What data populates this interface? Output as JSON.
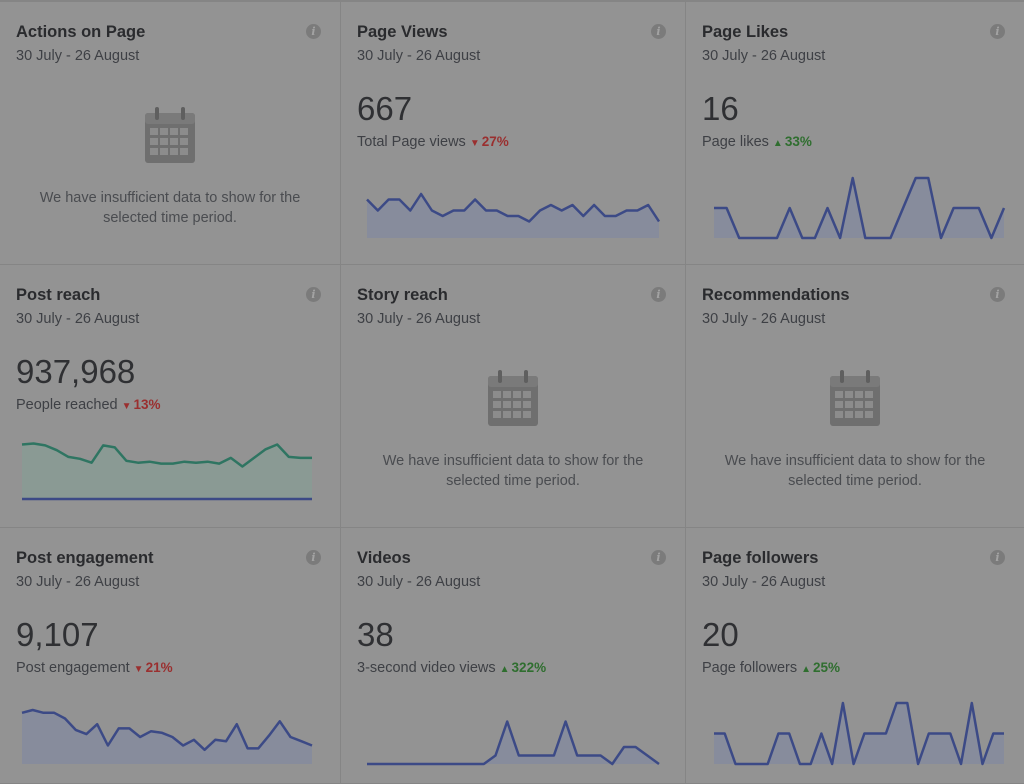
{
  "cards": [
    {
      "title": "Actions on Page",
      "date": "30 July - 26 August",
      "empty": true,
      "message_line1": "We have insufficient data to show for the",
      "message_line2": "selected time period."
    },
    {
      "title": "Page Views",
      "date": "30 July - 26 August",
      "value": "667",
      "label": "Total Page views",
      "delta": "27%",
      "direction": "down"
    },
    {
      "title": "Page Likes",
      "date": "30 July - 26 August",
      "value": "16",
      "label": "Page likes",
      "delta": "33%",
      "direction": "up"
    },
    {
      "title": "Post reach",
      "date": "30 July - 26 August",
      "value": "937,968",
      "label": "People reached",
      "delta": "13%",
      "direction": "down"
    },
    {
      "title": "Story reach",
      "date": "30 July - 26 August",
      "empty": true,
      "message_line1": "We have insufficient data to show for the",
      "message_line2": "selected time period."
    },
    {
      "title": "Recommendations",
      "date": "30 July - 26 August",
      "empty": true,
      "message_line1": "We have insufficient data to show for the",
      "message_line2": "selected time period."
    },
    {
      "title": "Post engagement",
      "date": "30 July - 26 August",
      "value": "9,107",
      "label": "Post engagement",
      "delta": "21%",
      "direction": "down"
    },
    {
      "title": "Videos",
      "date": "30 July - 26 August",
      "value": "38",
      "label": "3-second video views",
      "delta": "322%",
      "direction": "up"
    },
    {
      "title": "Page followers",
      "date": "30 July - 26 August",
      "value": "20",
      "label": "Page followers",
      "delta": "25%",
      "direction": "up"
    }
  ],
  "icons": {
    "info": "info-icon",
    "calendar": "calendar-icon",
    "up": "triangle-up-icon",
    "down": "triangle-down-icon"
  },
  "colors": {
    "series": "#3c4a86",
    "series_fill": "#878c9c",
    "reach_line": "#2f7562",
    "reach_fill": "#8a9a94"
  },
  "chart_data": [
    {
      "type": "area",
      "title": "Page Views",
      "series": [
        {
          "name": "Page views",
          "values": [
            7,
            5,
            7,
            7,
            5,
            8,
            5,
            4,
            5,
            5,
            7,
            5,
            5,
            4,
            4,
            3,
            5,
            6,
            5,
            6,
            4,
            6,
            4,
            4,
            5,
            5,
            6,
            3
          ]
        }
      ],
      "ylim": [
        0,
        10
      ]
    },
    {
      "type": "area",
      "title": "Page Likes",
      "series": [
        {
          "name": "Page likes",
          "values": [
            1,
            1,
            0,
            0,
            0,
            0,
            1,
            0,
            0,
            1,
            0,
            2,
            0,
            0,
            0,
            1,
            2,
            2,
            0,
            1,
            1,
            1,
            0,
            1
          ]
        }
      ],
      "ylim": [
        0,
        2
      ]
    },
    {
      "type": "area",
      "title": "Post reach",
      "series": [
        {
          "name": "People reached",
          "values": [
            58,
            59,
            57,
            52,
            45,
            43,
            39,
            57,
            55,
            41,
            39,
            40,
            38,
            38,
            40,
            39,
            40,
            38,
            44,
            35,
            44,
            53,
            58,
            45,
            44,
            44
          ]
        },
        {
          "name": "Paid reach",
          "values": [
            1,
            1,
            1,
            1,
            1,
            1,
            1,
            1,
            1,
            1,
            1,
            1,
            1,
            1,
            1,
            1,
            1,
            1,
            1,
            1,
            1,
            1,
            1,
            1,
            1,
            1
          ]
        }
      ],
      "ylim": [
        0,
        70
      ]
    },
    {
      "type": "area",
      "title": "Post engagement",
      "series": [
        {
          "name": "Post engagement",
          "values": [
            36,
            38,
            36,
            36,
            32,
            24,
            21,
            28,
            13,
            25,
            25,
            19,
            23,
            22,
            19,
            13,
            17,
            10,
            17,
            16,
            28,
            11,
            11,
            20,
            30,
            19,
            16,
            13
          ]
        }
      ],
      "ylim": [
        0,
        45
      ]
    },
    {
      "type": "area",
      "title": "Videos",
      "series": [
        {
          "name": "3-second video views",
          "values": [
            0,
            0,
            0,
            0,
            0,
            0,
            0,
            0,
            0,
            0,
            0,
            1,
            5,
            1,
            1,
            1,
            1,
            5,
            1,
            1,
            1,
            0,
            2,
            2,
            1,
            0
          ]
        }
      ],
      "ylim": [
        0,
        6
      ]
    },
    {
      "type": "area",
      "title": "Page followers",
      "series": [
        {
          "name": "Page followers",
          "values": [
            1,
            1,
            0,
            0,
            0,
            0,
            1,
            1,
            0,
            0,
            1,
            0,
            2,
            0,
            1,
            1,
            1,
            2,
            2,
            0,
            1,
            1,
            1,
            0,
            2,
            0,
            1,
            1
          ]
        }
      ],
      "ylim": [
        0,
        2
      ]
    }
  ]
}
